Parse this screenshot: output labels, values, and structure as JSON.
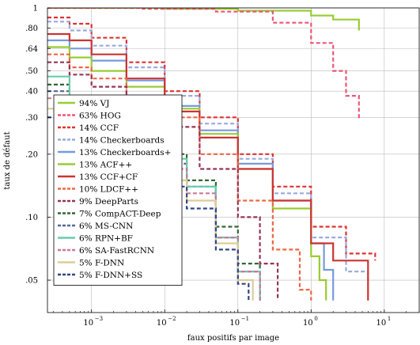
{
  "chart_data": {
    "type": "line",
    "xlabel": "faux positifs par image",
    "ylabel": "taux de défaut",
    "x_scale": "log",
    "y_scale": "log",
    "xlim": [
      0.00025,
      30
    ],
    "ylim": [
      0.035,
      1
    ],
    "grid": true,
    "legend_position": "left",
    "x_ticks": [
      0.001,
      0.01,
      0.1,
      1,
      10
    ],
    "x_tick_labels": [
      "10",
      "10",
      "10",
      "10",
      "10"
    ],
    "x_tick_exponents": [
      "−3",
      "−2",
      "−1",
      "0",
      "1"
    ],
    "y_ticks": [
      0.05,
      0.1,
      0.2,
      0.3,
      0.4,
      0.5,
      0.64,
      0.8,
      1
    ],
    "y_tick_labels": [
      ".05",
      ".10",
      ".20",
      ".30",
      ".40",
      ".50",
      ".64",
      ".80",
      "1"
    ],
    "series": [
      {
        "name": "94% VJ",
        "color": "#99cc33",
        "dash": "solid",
        "points": [
          [
            0.00025,
            1.0
          ],
          [
            0.01,
            0.99
          ],
          [
            0.1,
            0.97
          ],
          [
            1,
            0.92
          ],
          [
            2,
            0.88
          ],
          [
            4.5,
            0.78
          ]
        ]
      },
      {
        "name": "63% HOG",
        "color": "#ee5577",
        "dash": "dashed",
        "points": [
          [
            0.00025,
            1.0
          ],
          [
            0.005,
            0.99
          ],
          [
            0.05,
            0.96
          ],
          [
            0.3,
            0.85
          ],
          [
            1,
            0.68
          ],
          [
            2,
            0.5
          ],
          [
            3,
            0.38
          ],
          [
            4.5,
            0.29
          ]
        ]
      },
      {
        "name": "14% CCF",
        "color": "#dd3333",
        "dash": "dashed",
        "points": [
          [
            0.00025,
            0.9
          ],
          [
            0.0005,
            0.84
          ],
          [
            0.001,
            0.72
          ],
          [
            0.003,
            0.55
          ],
          [
            0.01,
            0.4
          ],
          [
            0.03,
            0.3
          ],
          [
            0.1,
            0.2
          ],
          [
            0.3,
            0.14
          ],
          [
            1,
            0.09
          ],
          [
            3,
            0.067
          ],
          [
            7.5,
            0.062
          ]
        ]
      },
      {
        "name": "14% Checkerboards",
        "color": "#99aadd",
        "dash": "dashed",
        "points": [
          [
            0.00025,
            0.86
          ],
          [
            0.0005,
            0.78
          ],
          [
            0.001,
            0.66
          ],
          [
            0.003,
            0.52
          ],
          [
            0.01,
            0.38
          ],
          [
            0.03,
            0.28
          ],
          [
            0.1,
            0.19
          ],
          [
            0.3,
            0.13
          ],
          [
            1,
            0.08
          ],
          [
            3,
            0.055
          ],
          [
            6,
            0.048
          ]
        ]
      },
      {
        "name": "13% Checkerboards+",
        "color": "#7799dd",
        "dash": "solid",
        "points": [
          [
            0.00025,
            0.7
          ],
          [
            0.0005,
            0.64
          ],
          [
            0.001,
            0.56
          ],
          [
            0.003,
            0.45
          ],
          [
            0.01,
            0.34
          ],
          [
            0.03,
            0.26
          ],
          [
            0.1,
            0.18
          ],
          [
            0.3,
            0.12
          ],
          [
            1,
            0.075
          ],
          [
            1.5,
            0.056
          ],
          [
            2,
            0.04
          ]
        ]
      },
      {
        "name": "13% ACF++",
        "color": "#99cc33",
        "dash": "solid",
        "points": [
          [
            0.00025,
            0.65
          ],
          [
            0.0005,
            0.58
          ],
          [
            0.001,
            0.5
          ],
          [
            0.003,
            0.42
          ],
          [
            0.01,
            0.33
          ],
          [
            0.03,
            0.25
          ],
          [
            0.1,
            0.17
          ],
          [
            0.3,
            0.11
          ],
          [
            1,
            0.065
          ],
          [
            1.3,
            0.05
          ],
          [
            1.6,
            0.04
          ]
        ]
      },
      {
        "name": "13% CCF+CF",
        "color": "#cc3333",
        "dash": "solid",
        "points": [
          [
            0.00025,
            0.75
          ],
          [
            0.0005,
            0.7
          ],
          [
            0.001,
            0.6
          ],
          [
            0.003,
            0.46
          ],
          [
            0.01,
            0.32
          ],
          [
            0.03,
            0.24
          ],
          [
            0.1,
            0.17
          ],
          [
            0.3,
            0.12
          ],
          [
            1,
            0.075
          ],
          [
            2,
            0.062
          ],
          [
            6,
            0.04
          ]
        ]
      },
      {
        "name": "10% LDCF++",
        "color": "#ee6644",
        "dash": "dashed",
        "points": [
          [
            0.00025,
            0.6
          ],
          [
            0.0005,
            0.52
          ],
          [
            0.001,
            0.46
          ],
          [
            0.003,
            0.38
          ],
          [
            0.01,
            0.3
          ],
          [
            0.03,
            0.2
          ],
          [
            0.1,
            0.12
          ],
          [
            0.3,
            0.07
          ],
          [
            0.7,
            0.045
          ],
          [
            1,
            0.04
          ]
        ]
      },
      {
        "name": "9% DeepParts",
        "color": "#993355",
        "dash": "dashed",
        "points": [
          [
            0.00025,
            0.55
          ],
          [
            0.0005,
            0.48
          ],
          [
            0.001,
            0.42
          ],
          [
            0.003,
            0.34
          ],
          [
            0.01,
            0.27
          ],
          [
            0.03,
            0.17
          ],
          [
            0.1,
            0.1
          ],
          [
            0.2,
            0.06
          ],
          [
            0.35,
            0.04
          ]
        ]
      },
      {
        "name": "7% CompACT-Deep",
        "color": "#336633",
        "dash": "dashed",
        "points": [
          [
            0.00025,
            0.43
          ],
          [
            0.0005,
            0.38
          ],
          [
            0.001,
            0.32
          ],
          [
            0.003,
            0.26
          ],
          [
            0.01,
            0.2
          ],
          [
            0.02,
            0.15
          ],
          [
            0.05,
            0.09
          ],
          [
            0.1,
            0.06
          ],
          [
            0.2,
            0.04
          ]
        ]
      },
      {
        "name": "6% MS-CNN",
        "color": "#556699",
        "dash": "dashed",
        "points": [
          [
            0.00025,
            0.4
          ],
          [
            0.0005,
            0.34
          ],
          [
            0.001,
            0.29
          ],
          [
            0.003,
            0.23
          ],
          [
            0.01,
            0.18
          ],
          [
            0.02,
            0.14
          ],
          [
            0.05,
            0.08
          ],
          [
            0.1,
            0.055
          ],
          [
            0.2,
            0.04
          ]
        ]
      },
      {
        "name": "6% RPN+BF",
        "color": "#66ccaa",
        "dash": "solid",
        "points": [
          [
            0.00025,
            0.47
          ],
          [
            0.0005,
            0.38
          ],
          [
            0.001,
            0.32
          ],
          [
            0.003,
            0.25
          ],
          [
            0.01,
            0.19
          ],
          [
            0.02,
            0.14
          ],
          [
            0.05,
            0.08
          ],
          [
            0.1,
            0.055
          ],
          [
            0.2,
            0.04
          ]
        ]
      },
      {
        "name": "6% SA-FastRCNN",
        "color": "#cc7799",
        "dash": "dashed",
        "points": [
          [
            0.00025,
            0.37
          ],
          [
            0.0005,
            0.32
          ],
          [
            0.001,
            0.28
          ],
          [
            0.003,
            0.22
          ],
          [
            0.01,
            0.17
          ],
          [
            0.02,
            0.13
          ],
          [
            0.05,
            0.08
          ],
          [
            0.1,
            0.055
          ],
          [
            0.2,
            0.04
          ]
        ]
      },
      {
        "name": "5% F-DNN",
        "color": "#ddcc99",
        "dash": "solid",
        "points": [
          [
            0.00025,
            0.33
          ],
          [
            0.0005,
            0.29
          ],
          [
            0.001,
            0.25
          ],
          [
            0.003,
            0.2
          ],
          [
            0.01,
            0.15
          ],
          [
            0.02,
            0.12
          ],
          [
            0.05,
            0.075
          ],
          [
            0.1,
            0.05
          ],
          [
            0.16,
            0.04
          ]
        ]
      },
      {
        "name": "5% F-DNN+SS",
        "color": "#334488",
        "dash": "dashed",
        "points": [
          [
            0.00025,
            0.3
          ],
          [
            0.0005,
            0.26
          ],
          [
            0.001,
            0.22
          ],
          [
            0.003,
            0.18
          ],
          [
            0.01,
            0.14
          ],
          [
            0.02,
            0.11
          ],
          [
            0.05,
            0.07
          ],
          [
            0.1,
            0.048
          ],
          [
            0.14,
            0.04
          ]
        ]
      }
    ]
  }
}
